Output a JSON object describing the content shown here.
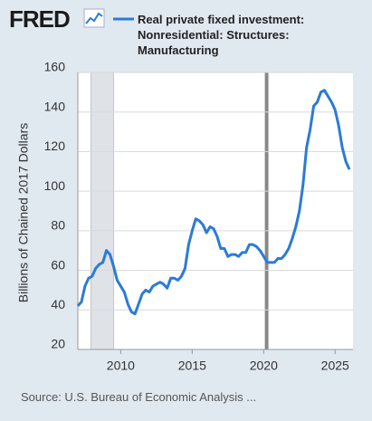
{
  "logo": "FRED",
  "source": "Source: U.S. Bureau of Economic Analysis ...",
  "chart_data": {
    "type": "line",
    "ylabel": "Billions of Chained 2017 Dollars",
    "x": [
      2007.0,
      2007.25,
      2007.5,
      2007.75,
      2008.0,
      2008.25,
      2008.5,
      2008.75,
      2009.0,
      2009.25,
      2009.5,
      2009.75,
      2010.0,
      2010.25,
      2010.5,
      2010.75,
      2011.0,
      2011.25,
      2011.5,
      2011.75,
      2012.0,
      2012.25,
      2012.5,
      2012.75,
      2013.0,
      2013.25,
      2013.5,
      2013.75,
      2014.0,
      2014.25,
      2014.5,
      2014.75,
      2015.0,
      2015.25,
      2015.5,
      2015.75,
      2016.0,
      2016.25,
      2016.5,
      2016.75,
      2017.0,
      2017.25,
      2017.5,
      2017.75,
      2018.0,
      2018.25,
      2018.5,
      2018.75,
      2019.0,
      2019.25,
      2019.5,
      2019.75,
      2020.0,
      2020.25,
      2020.5,
      2020.75,
      2021.0,
      2021.25,
      2021.5,
      2021.75,
      2022.0,
      2022.25,
      2022.5,
      2022.75,
      2023.0,
      2023.25,
      2023.5,
      2023.75,
      2024.0,
      2024.25,
      2024.5,
      2024.75,
      2025.0,
      2025.25,
      2025.5,
      2025.75,
      2026.0
    ],
    "series": [
      {
        "name": "Real private fixed investment: Nonresidential: Structures: Manufacturing",
        "color": "#2b7bd6",
        "values": [
          42,
          44,
          52,
          56,
          57,
          61,
          63,
          64,
          70,
          68,
          62,
          55,
          52,
          49,
          43,
          39,
          38,
          43,
          48,
          50,
          49,
          52,
          53,
          54,
          53,
          51,
          56,
          56,
          55,
          57,
          61,
          73,
          80,
          86,
          85,
          83,
          79,
          82,
          81,
          77,
          71,
          71,
          67,
          68,
          68,
          67,
          69,
          69,
          73,
          73,
          72,
          70,
          67,
          64,
          64,
          64,
          66,
          66,
          68,
          71,
          76,
          82,
          90,
          103,
          122,
          131,
          143,
          145,
          150,
          151,
          148,
          145,
          141,
          133,
          122,
          115,
          111
        ]
      }
    ],
    "xlim": [
      2007.0,
      2026.25
    ],
    "xticks": [
      2010,
      2015,
      2020,
      2025
    ],
    "ylim": [
      20,
      160
    ],
    "yticks": [
      20,
      40,
      60,
      80,
      100,
      120,
      140,
      160
    ],
    "recessions": [
      [
        2007.917,
        2009.5
      ],
      [
        2020.083,
        2020.333
      ]
    ],
    "grid": true
  }
}
